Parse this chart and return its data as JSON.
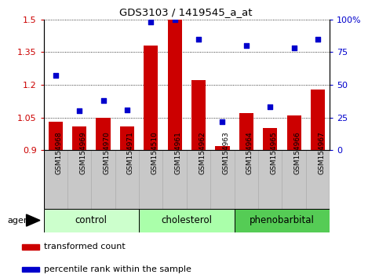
{
  "title": "GDS3103 / 1419545_a_at",
  "samples": [
    "GSM154968",
    "GSM154969",
    "GSM154970",
    "GSM154971",
    "GSM154510",
    "GSM154961",
    "GSM154962",
    "GSM154963",
    "GSM154964",
    "GSM154965",
    "GSM154966",
    "GSM154967"
  ],
  "bar_values": [
    1.03,
    1.01,
    1.05,
    1.01,
    1.38,
    1.5,
    1.22,
    0.92,
    1.07,
    1.0,
    1.06,
    1.18
  ],
  "percentile_values": [
    57,
    30,
    38,
    31,
    98,
    100,
    85,
    22,
    80,
    33,
    78,
    85
  ],
  "groups": [
    {
      "label": "control",
      "start": 0,
      "end": 4,
      "color": "#ccffcc"
    },
    {
      "label": "cholesterol",
      "start": 4,
      "end": 8,
      "color": "#aaffaa"
    },
    {
      "label": "phenobarbital",
      "start": 8,
      "end": 12,
      "color": "#66dd66"
    }
  ],
  "ylim_left": [
    0.9,
    1.5
  ],
  "ylim_right": [
    0,
    100
  ],
  "left_ticks": [
    0.9,
    1.05,
    1.2,
    1.35,
    1.5
  ],
  "right_ticks": [
    0,
    25,
    50,
    75,
    100
  ],
  "right_tick_labels": [
    "0",
    "25",
    "50",
    "75",
    "100%"
  ],
  "bar_color": "#cc0000",
  "dot_color": "#0000cc",
  "bar_bottom": 0.9,
  "xtick_bg_color": "#c8c8c8",
  "legend_items": [
    {
      "color": "#cc0000",
      "label": "transformed count"
    },
    {
      "color": "#0000cc",
      "label": "percentile rank within the sample"
    }
  ]
}
